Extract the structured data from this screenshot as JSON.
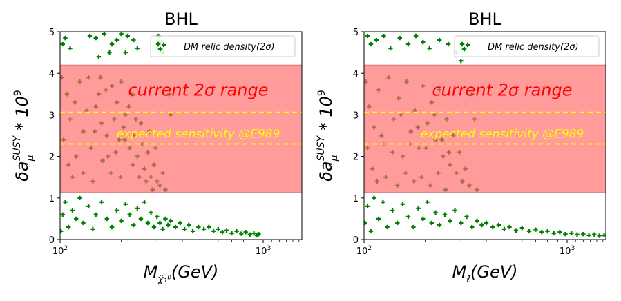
{
  "chart_data": [
    {
      "type": "scatter",
      "title": "BHL",
      "xlabel": "M_{χ̃₁⁰}(GeV)",
      "ylabel": "δa_μ^SUSY * 10^9",
      "xscale": "log",
      "xlim": [
        100,
        1550
      ],
      "ylim": [
        0,
        5
      ],
      "xticks": [
        {
          "v": 100,
          "label": "10²"
        },
        {
          "v": 1000,
          "label": "10³"
        }
      ],
      "yticks": [
        0,
        1,
        2,
        3,
        4,
        5
      ],
      "grid": false,
      "legend": {
        "placement": "top-right",
        "entries": [
          "DM relic density(2σ)"
        ]
      },
      "colors": {
        "points": "#008000",
        "band": "#ff6666",
        "lines": "#ffff00",
        "band_text": "#ff0000",
        "sensitivity_text": "#ffff00"
      },
      "band": {
        "y_min": 1.14,
        "y_max": 4.2,
        "label": "current 2σ range"
      },
      "sensitivity": {
        "y_min": 2.3,
        "y_max": 3.06,
        "label": "expected sensitivity @E989"
      },
      "series": [
        {
          "name": "DM relic density(2σ)",
          "points": [
            [
              103,
              4.7
            ],
            [
              106,
              4.85
            ],
            [
              112,
              4.6
            ],
            [
              140,
              4.9
            ],
            [
              150,
              4.85
            ],
            [
              165,
              4.95
            ],
            [
              180,
              4.7
            ],
            [
              190,
              4.8
            ],
            [
              200,
              4.95
            ],
            [
              215,
              4.9
            ],
            [
              230,
              4.8
            ],
            [
              155,
              4.4
            ],
            [
              175,
              4.5
            ],
            [
              210,
              4.5
            ],
            [
              240,
              4.6
            ],
            [
              305,
              4.9
            ],
            [
              310,
              4.75
            ],
            [
              320,
              4.5
            ],
            [
              102,
              3.9
            ],
            [
              108,
              3.5
            ],
            [
              112,
              2.9
            ],
            [
              118,
              3.3
            ],
            [
              125,
              3.8
            ],
            [
              130,
              2.6
            ],
            [
              138,
              3.9
            ],
            [
              142,
              2.2
            ],
            [
              150,
              3.2
            ],
            [
              158,
              3.9
            ],
            [
              160,
              2.8
            ],
            [
              168,
              3.6
            ],
            [
              172,
              2.0
            ],
            [
              180,
              3.7
            ],
            [
              185,
              2.9
            ],
            [
              190,
              3.3
            ],
            [
              195,
              2.4
            ],
            [
              200,
              3.8
            ],
            [
              205,
              2.7
            ],
            [
              210,
              3.0
            ],
            [
              220,
              2.2
            ],
            [
              225,
              3.5
            ],
            [
              230,
              2.5
            ],
            [
              240,
              2.0
            ],
            [
              250,
              2.8
            ],
            [
              260,
              1.7
            ],
            [
              270,
              2.1
            ],
            [
              280,
              1.5
            ],
            [
              290,
              1.8
            ],
            [
              300,
              1.4
            ],
            [
              310,
              1.3
            ],
            [
              320,
              1.6
            ],
            [
              330,
              1.2
            ],
            [
              345,
              3.5
            ],
            [
              350,
              3.0
            ],
            [
              104,
              2.4
            ],
            [
              110,
              1.8
            ],
            [
              115,
              1.5
            ],
            [
              120,
              2.0
            ],
            [
              130,
              1.6
            ],
            [
              135,
              3.1
            ],
            [
              145,
              1.4
            ],
            [
              148,
              2.6
            ],
            [
              155,
              3.5
            ],
            [
              162,
              1.9
            ],
            [
              170,
              2.5
            ],
            [
              178,
              1.6
            ],
            [
              188,
              2.1
            ],
            [
              198,
              1.5
            ],
            [
              208,
              2.4
            ],
            [
              218,
              3.2
            ],
            [
              228,
              1.8
            ],
            [
              236,
              2.9
            ],
            [
              245,
              1.5
            ],
            [
              255,
              2.3
            ],
            [
              265,
              1.4
            ],
            [
              275,
              2.6
            ],
            [
              285,
              1.2
            ],
            [
              295,
              2.2
            ],
            [
              101,
              0.2
            ],
            [
              103,
              0.6
            ],
            [
              106,
              0.9
            ],
            [
              110,
              0.3
            ],
            [
              115,
              0.7
            ],
            [
              120,
              0.5
            ],
            [
              125,
              1.0
            ],
            [
              130,
              0.4
            ],
            [
              138,
              0.8
            ],
            [
              145,
              0.25
            ],
            [
              150,
              0.6
            ],
            [
              160,
              0.9
            ],
            [
              170,
              0.5
            ],
            [
              180,
              0.3
            ],
            [
              190,
              0.7
            ],
            [
              200,
              0.45
            ],
            [
              210,
              0.85
            ],
            [
              220,
              0.6
            ],
            [
              230,
              0.35
            ],
            [
              240,
              0.75
            ],
            [
              250,
              0.5
            ],
            [
              260,
              0.9
            ],
            [
              270,
              0.4
            ],
            [
              280,
              0.65
            ],
            [
              290,
              0.3
            ],
            [
              300,
              0.55
            ],
            [
              310,
              0.4
            ],
            [
              320,
              0.25
            ],
            [
              330,
              0.5
            ],
            [
              340,
              0.35
            ],
            [
              350,
              0.45
            ],
            [
              370,
              0.3
            ],
            [
              390,
              0.4
            ],
            [
              410,
              0.25
            ],
            [
              430,
              0.35
            ],
            [
              450,
              0.2
            ],
            [
              480,
              0.3
            ],
            [
              510,
              0.25
            ],
            [
              540,
              0.3
            ],
            [
              570,
              0.2
            ],
            [
              600,
              0.25
            ],
            [
              630,
              0.18
            ],
            [
              660,
              0.22
            ],
            [
              700,
              0.15
            ],
            [
              740,
              0.2
            ],
            [
              780,
              0.14
            ],
            [
              820,
              0.18
            ],
            [
              860,
              0.12
            ],
            [
              900,
              0.15
            ],
            [
              930,
              0.1
            ],
            [
              950,
              0.13
            ]
          ]
        }
      ]
    },
    {
      "type": "scatter",
      "title": "BHL",
      "xlabel": "M_{ℓ̃}(GeV)",
      "ylabel": "δa_μ^SUSY * 10^9",
      "xscale": "log",
      "xlim": [
        100,
        1550
      ],
      "ylim": [
        0,
        5
      ],
      "xticks": [
        {
          "v": 100,
          "label": "10²"
        },
        {
          "v": 1000,
          "label": "10³"
        }
      ],
      "yticks": [
        0,
        1,
        2,
        3,
        4,
        5
      ],
      "grid": false,
      "legend": {
        "placement": "top-right",
        "entries": [
          "DM relic density(2σ)"
        ]
      },
      "colors": {
        "points": "#008000",
        "band": "#ff6666",
        "lines": "#ffff00",
        "band_text": "#ff0000",
        "sensitivity_text": "#ffff00"
      },
      "band": {
        "y_min": 1.14,
        "y_max": 4.2,
        "label": "current 2σ range"
      },
      "sensitivity": {
        "y_min": 2.3,
        "y_max": 3.06,
        "label": "expected sensitivity @E989"
      },
      "series": [
        {
          "name": "DM relic density(2σ)",
          "points": [
            [
              104,
              4.9
            ],
            [
              108,
              4.7
            ],
            [
              115,
              4.8
            ],
            [
              125,
              4.9
            ],
            [
              135,
              4.6
            ],
            [
              150,
              4.85
            ],
            [
              165,
              4.7
            ],
            [
              180,
              4.9
            ],
            [
              195,
              4.75
            ],
            [
              210,
              4.6
            ],
            [
              235,
              4.8
            ],
            [
              260,
              4.7
            ],
            [
              285,
              4.5
            ],
            [
              300,
              4.3
            ],
            [
              102,
              3.8
            ],
            [
              106,
              3.2
            ],
            [
              112,
              2.7
            ],
            [
              118,
              3.6
            ],
            [
              125,
              2.3
            ],
            [
              132,
              3.9
            ],
            [
              140,
              2.9
            ],
            [
              148,
              3.4
            ],
            [
              155,
              2.0
            ],
            [
              162,
              3.8
            ],
            [
              170,
              2.6
            ],
            [
              178,
              3.1
            ],
            [
              186,
              2.2
            ],
            [
              195,
              3.7
            ],
            [
              205,
              2.8
            ],
            [
              215,
              3.3
            ],
            [
              225,
              2.4
            ],
            [
              235,
              3.6
            ],
            [
              245,
              2.0
            ],
            [
              255,
              2.9
            ],
            [
              265,
              1.8
            ],
            [
              275,
              2.5
            ],
            [
              285,
              1.6
            ],
            [
              295,
              2.1
            ],
            [
              305,
              1.4
            ],
            [
              315,
              1.7
            ],
            [
              330,
              1.3
            ],
            [
              340,
              3.5
            ],
            [
              350,
              2.9
            ],
            [
              360,
              1.2
            ],
            [
              104,
              2.2
            ],
            [
              110,
              1.7
            ],
            [
              116,
              1.4
            ],
            [
              122,
              2.5
            ],
            [
              128,
              1.5
            ],
            [
              138,
              2.1
            ],
            [
              146,
              1.3
            ],
            [
              152,
              3.0
            ],
            [
              160,
              1.6
            ],
            [
              168,
              2.3
            ],
            [
              176,
              1.4
            ],
            [
              184,
              2.7
            ],
            [
              192,
              1.5
            ],
            [
              202,
              2.2
            ],
            [
              212,
              1.3
            ],
            [
              222,
              3.0
            ],
            [
              232,
              1.6
            ],
            [
              242,
              2.4
            ],
            [
              252,
              1.2
            ],
            [
              262,
              2.1
            ],
            [
              101,
              0.4
            ],
            [
              104,
              0.8
            ],
            [
              108,
              0.2
            ],
            [
              112,
              1.0
            ],
            [
              118,
              0.5
            ],
            [
              124,
              0.9
            ],
            [
              130,
              0.3
            ],
            [
              138,
              0.7
            ],
            [
              146,
              0.4
            ],
            [
              155,
              0.85
            ],
            [
              165,
              0.55
            ],
            [
              175,
              0.3
            ],
            [
              185,
              0.75
            ],
            [
              195,
              0.5
            ],
            [
              205,
              0.9
            ],
            [
              215,
              0.4
            ],
            [
              225,
              0.65
            ],
            [
              235,
              0.35
            ],
            [
              250,
              0.6
            ],
            [
              265,
              0.45
            ],
            [
              280,
              0.7
            ],
            [
              300,
              0.4
            ],
            [
              320,
              0.55
            ],
            [
              340,
              0.3
            ],
            [
              360,
              0.45
            ],
            [
              380,
              0.35
            ],
            [
              400,
              0.4
            ],
            [
              430,
              0.3
            ],
            [
              460,
              0.35
            ],
            [
              490,
              0.25
            ],
            [
              520,
              0.3
            ],
            [
              560,
              0.22
            ],
            [
              600,
              0.28
            ],
            [
              650,
              0.2
            ],
            [
              700,
              0.24
            ],
            [
              750,
              0.18
            ],
            [
              800,
              0.2
            ],
            [
              860,
              0.15
            ],
            [
              920,
              0.18
            ],
            [
              980,
              0.13
            ],
            [
              1050,
              0.15
            ],
            [
              1120,
              0.12
            ],
            [
              1200,
              0.13
            ],
            [
              1280,
              0.1
            ],
            [
              1360,
              0.12
            ],
            [
              1440,
              0.09
            ],
            [
              1520,
              0.1
            ]
          ]
        }
      ]
    }
  ]
}
